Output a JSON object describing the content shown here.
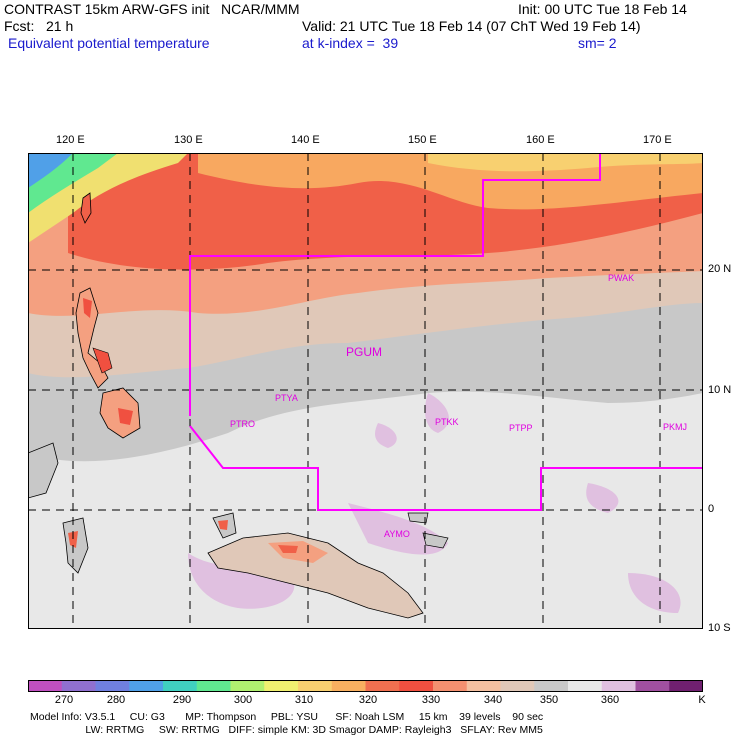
{
  "header": {
    "line1_left": "CONTRAST 15km ARW-GFS init   NCAR/MMM",
    "fcst": "Fcst:   21 h",
    "field": "Equivalent potential temperature",
    "init": "Init: 00 UTC Tue 18 Feb 14",
    "valid": "Valid: 21 UTC Tue 18 Feb 14 (07 ChT Wed 19 Feb 14)",
    "level": "at k-index =  39",
    "smooth": "sm= 2"
  },
  "map": {
    "lon_ticks": [
      "120 E",
      "130 E",
      "140 E",
      "150 E",
      "160 E",
      "170 E"
    ],
    "lat_ticks": [
      "20 N",
      "10 N",
      "0",
      "10 S"
    ],
    "stations": [
      {
        "id": "PGUM",
        "big": true
      },
      {
        "id": "PTYA"
      },
      {
        "id": "PTRO"
      },
      {
        "id": "PTKK"
      },
      {
        "id": "PTPP"
      },
      {
        "id": "PKMJ"
      },
      {
        "id": "PWAK"
      },
      {
        "id": "AYMO"
      }
    ],
    "colors": {
      "land_outline": "#000000",
      "domain_box": "#ff00ff",
      "grid": "#000000"
    }
  },
  "colorbar": {
    "labels": [
      "270",
      "280",
      "290",
      "300",
      "310",
      "320",
      "330",
      "340",
      "350",
      "360"
    ],
    "unit": "K",
    "colors": [
      "#c050c0",
      "#9070d0",
      "#7080e0",
      "#50a0e8",
      "#40d0c0",
      "#60e890",
      "#b0f070",
      "#f0f070",
      "#f8d070",
      "#f8b060",
      "#f07050",
      "#f05040",
      "#f49070",
      "#f4c0a0",
      "#e0c8b8",
      "#c8c8c8",
      "#e8e8e8",
      "#e0c0e0",
      "#a050a0",
      "#702070"
    ]
  },
  "footer": {
    "line1": "Model Info: V3.5.1     CU: G3       MP: Thompson     PBL: YSU      SF: Noah LSM     15 km    39 levels    90 sec",
    "line2": "                   LW: RRTMG     SW: RRTMG   DIFF: simple KM: 3D Smagor DAMP: Rayleigh3   SFLAY: Rev MM5"
  }
}
